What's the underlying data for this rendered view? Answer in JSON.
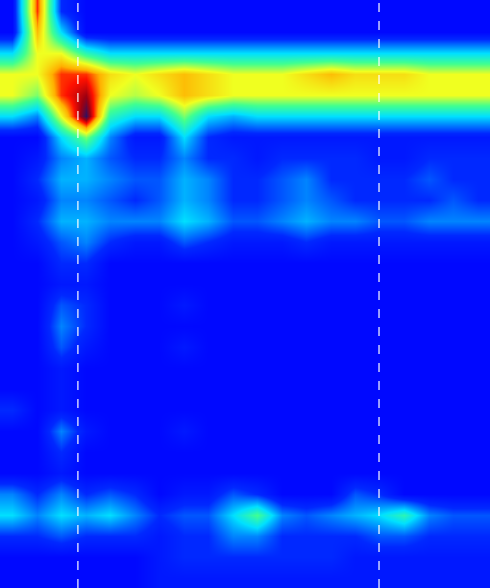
{
  "chart_data": {
    "type": "heatmap",
    "tick_labels": false,
    "grid": false,
    "x": [
      0,
      1,
      2,
      3,
      4,
      5,
      6,
      7,
      8,
      9,
      10,
      11,
      12,
      13,
      14,
      15,
      16,
      17,
      18,
      19
    ],
    "y": [
      0,
      1,
      2,
      3,
      4,
      5,
      6,
      7,
      8,
      9,
      10,
      11,
      12,
      13,
      14,
      15,
      16,
      17,
      18,
      19,
      20,
      21,
      22,
      23,
      24,
      25,
      26,
      27
    ],
    "xlim": [
      -0.5,
      19.5
    ],
    "ylim": [
      27.5,
      -0.5
    ],
    "zlim": [
      0,
      10
    ],
    "vlines": [
      2.68,
      14.97
    ],
    "line_style": "dash",
    "color": "#ffffff",
    "cells": [
      [
        0,
        8,
        1,
        0,
        0,
        0,
        0,
        0,
        0,
        0,
        0,
        0,
        0,
        0,
        0,
        0,
        0,
        0,
        0,
        0
      ],
      [
        0,
        7,
        3,
        0,
        0,
        0,
        0,
        0,
        0,
        0,
        0,
        0,
        0,
        0,
        0,
        0,
        0,
        0,
        0,
        0
      ],
      [
        3,
        6,
        6,
        4,
        3,
        3,
        3,
        3,
        3,
        3,
        3,
        3,
        3,
        3,
        3,
        3,
        3,
        3,
        3,
        3
      ],
      [
        6,
        6,
        8,
        8,
        6.5,
        6,
        6.5,
        7,
        6.5,
        6,
        6,
        6,
        6.5,
        7,
        6.5,
        6.5,
        6.5,
        6,
        6,
        6
      ],
      [
        6,
        5,
        8,
        9,
        6,
        5.5,
        6,
        7,
        6.5,
        6,
        6,
        6,
        6,
        6,
        6,
        6,
        6,
        6,
        6,
        6
      ],
      [
        3,
        2,
        6,
        10,
        4,
        3,
        3,
        5,
        3,
        2.5,
        3,
        3,
        3,
        3,
        3,
        3,
        3,
        3,
        3,
        3
      ],
      [
        0,
        0,
        3,
        5,
        2,
        0.5,
        0.5,
        3,
        1,
        0.5,
        0.5,
        0.5,
        0.5,
        0.5,
        0.5,
        0.5,
        0.5,
        0.5,
        0.5,
        0.5
      ],
      [
        0,
        0.5,
        2,
        2.5,
        1.5,
        1,
        1,
        2,
        1,
        1,
        0.5,
        1,
        1,
        1,
        1,
        0.5,
        0.5,
        1,
        1,
        1
      ],
      [
        0,
        1,
        2.5,
        2.5,
        2,
        1.5,
        1.5,
        2.5,
        2,
        1,
        1,
        1.5,
        2,
        1,
        1,
        1,
        1,
        1.5,
        1,
        1
      ],
      [
        0,
        0.5,
        2,
        2,
        1.5,
        1,
        1.5,
        2.5,
        2,
        1,
        1,
        1.5,
        2,
        1.5,
        1,
        1,
        1,
        1,
        1.5,
        1
      ],
      [
        0,
        1,
        2.5,
        2.5,
        2,
        2,
        2,
        3,
        2.5,
        1.5,
        1.5,
        2,
        2.5,
        2,
        2,
        1.5,
        1.5,
        2,
        2,
        2
      ],
      [
        0,
        0.5,
        1.5,
        2,
        1,
        0.5,
        0.5,
        1.5,
        1,
        0.5,
        0.5,
        0.5,
        1,
        0.5,
        0.5,
        0.5,
        0.5,
        0.5,
        0.5,
        0.5
      ],
      [
        0,
        0,
        1,
        1,
        0,
        0,
        0,
        0,
        0,
        0,
        0,
        0,
        0,
        0,
        0,
        0,
        0,
        0,
        0,
        0
      ],
      [
        0,
        0,
        0.5,
        0.5,
        0,
        0,
        0,
        0,
        0,
        0,
        0,
        0,
        0,
        0,
        0,
        0,
        0,
        0,
        0,
        0
      ],
      [
        0,
        0,
        1.5,
        1,
        0,
        0,
        0,
        0.5,
        0,
        0,
        0,
        0,
        0,
        0,
        0,
        0,
        0,
        0,
        0,
        0
      ],
      [
        0,
        0,
        2,
        1,
        0,
        0,
        0,
        0,
        0,
        0,
        0,
        0,
        0,
        0,
        0,
        0,
        0,
        0,
        0,
        0
      ],
      [
        0,
        0,
        1.5,
        0.5,
        0,
        0,
        0,
        0.5,
        0,
        0,
        0,
        0,
        0,
        0,
        0,
        0,
        0,
        0,
        0,
        0
      ],
      [
        0,
        0,
        0.5,
        0,
        0,
        0,
        0,
        0,
        0,
        0,
        0,
        0,
        0,
        0,
        0,
        0,
        0,
        0,
        0,
        0
      ],
      [
        0,
        0,
        0.5,
        0,
        0,
        0,
        0,
        0,
        0,
        0,
        0,
        0,
        0,
        0,
        0,
        0,
        0,
        0,
        0,
        0
      ],
      [
        1,
        0,
        0.5,
        0,
        0,
        0,
        0,
        0,
        0,
        0,
        0,
        0,
        0,
        0,
        0,
        0,
        0,
        0,
        0,
        0
      ],
      [
        0,
        0,
        2,
        0.5,
        0,
        0,
        0,
        0.5,
        0,
        0,
        0,
        0,
        0,
        0,
        0,
        0,
        0,
        0,
        0,
        0
      ],
      [
        0,
        0,
        1,
        0,
        0,
        0,
        0,
        0,
        0,
        0,
        0,
        0,
        0,
        0,
        0,
        0,
        0,
        0,
        0,
        0
      ],
      [
        0,
        0,
        0.5,
        0,
        0,
        0,
        0,
        0,
        0,
        0,
        0,
        0,
        0,
        0,
        0,
        0,
        0,
        0,
        0,
        0
      ],
      [
        2,
        1,
        2,
        1,
        1.5,
        1,
        0,
        0.5,
        0.5,
        1.5,
        1,
        0,
        0,
        0,
        1.5,
        1,
        0,
        0,
        0,
        0
      ],
      [
        3,
        2,
        3,
        2.5,
        3,
        2,
        1,
        1.5,
        1.5,
        3,
        4.5,
        2,
        1.5,
        2,
        2.5,
        3,
        4,
        2,
        1.5,
        1.5
      ],
      [
        1,
        1,
        1.5,
        1,
        1,
        1,
        0.5,
        1,
        1,
        2,
        2,
        1,
        1,
        1,
        1,
        1.5,
        1.5,
        1,
        1,
        1
      ],
      [
        0,
        0,
        0,
        0,
        0,
        0,
        0.5,
        1,
        1,
        1,
        1,
        1,
        1,
        1,
        0.5,
        0.5,
        0.5,
        0.5,
        0.5,
        0.5
      ],
      [
        0,
        0,
        0,
        0,
        0,
        0,
        0.5,
        0.5,
        0.5,
        0.5,
        0.5,
        0.5,
        0.5,
        0.5,
        0.5,
        0.5,
        0.5,
        0.5,
        0.5,
        0.5
      ]
    ]
  }
}
